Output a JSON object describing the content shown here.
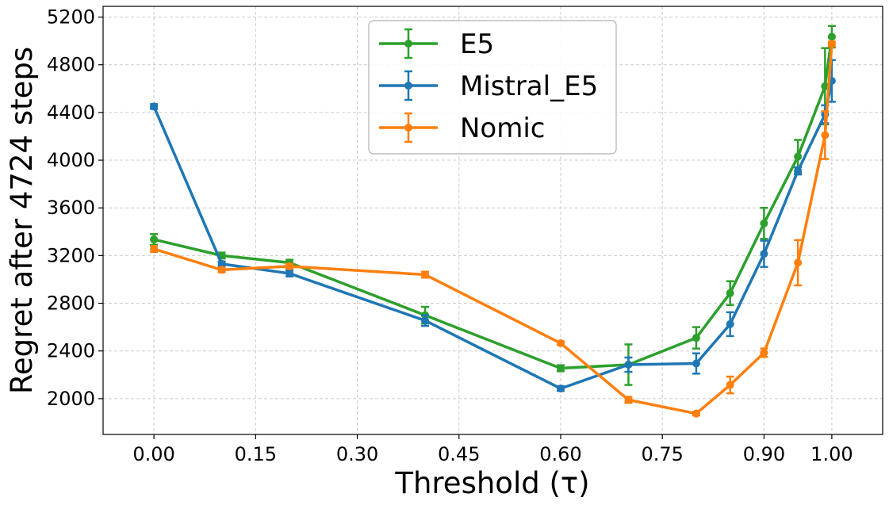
{
  "chart_data": {
    "type": "line",
    "title": "",
    "xlabel": "Threshold (τ)",
    "ylabel": "Regret after 4724 steps",
    "xlim": [
      -0.075,
      1.075
    ],
    "ylim": [
      1700,
      5290
    ],
    "x_ticks": [
      0.0,
      0.15,
      0.3,
      0.45,
      0.6,
      0.75,
      0.9,
      1.0
    ],
    "x_tick_labels": [
      "0.00",
      "0.15",
      "0.30",
      "0.45",
      "0.60",
      "0.75",
      "0.90",
      "1.00"
    ],
    "y_ticks": [
      2000,
      2400,
      2800,
      3200,
      3600,
      4000,
      4400,
      4800,
      5200
    ],
    "y_tick_labels": [
      "2000",
      "2400",
      "2800",
      "3200",
      "3600",
      "4000",
      "4400",
      "4800",
      "5200"
    ],
    "grid": true,
    "legend_position": "top-center",
    "series": [
      {
        "name": "E5",
        "color": "#2ca02c",
        "x": [
          0.0,
          0.1,
          0.2,
          0.4,
          0.6,
          0.7,
          0.8,
          0.85,
          0.9,
          0.95,
          0.99,
          1.0
        ],
        "y": [
          3335,
          3200,
          3140,
          2700,
          2255,
          2285,
          2510,
          2885,
          3470,
          4030,
          4620,
          5035
        ],
        "err": [
          45,
          25,
          25,
          70,
          25,
          170,
          90,
          100,
          130,
          140,
          320,
          90
        ]
      },
      {
        "name": "Mistral_E5",
        "color": "#1f77b4",
        "x": [
          0.0,
          0.1,
          0.2,
          0.4,
          0.6,
          0.7,
          0.8,
          0.85,
          0.9,
          0.95,
          0.99,
          1.0
        ],
        "y": [
          4450,
          3130,
          3050,
          2655,
          2085,
          2285,
          2295,
          2625,
          3215,
          3910,
          4385,
          4665
        ],
        "err": [
          20,
          20,
          25,
          45,
          20,
          60,
          85,
          100,
          110,
          30,
          75,
          175
        ]
      },
      {
        "name": "Nomic",
        "color": "#ff7f0e",
        "x": [
          0.0,
          0.1,
          0.2,
          0.4,
          0.6,
          0.7,
          0.8,
          0.85,
          0.9,
          0.95,
          0.99,
          1.0
        ],
        "y": [
          3255,
          3080,
          3110,
          3040,
          2465,
          1990,
          1875,
          2115,
          2385,
          3140,
          4210,
          4975
        ],
        "err": [
          25,
          20,
          20,
          25,
          15,
          25,
          15,
          70,
          35,
          190,
          200,
          20
        ]
      }
    ]
  }
}
